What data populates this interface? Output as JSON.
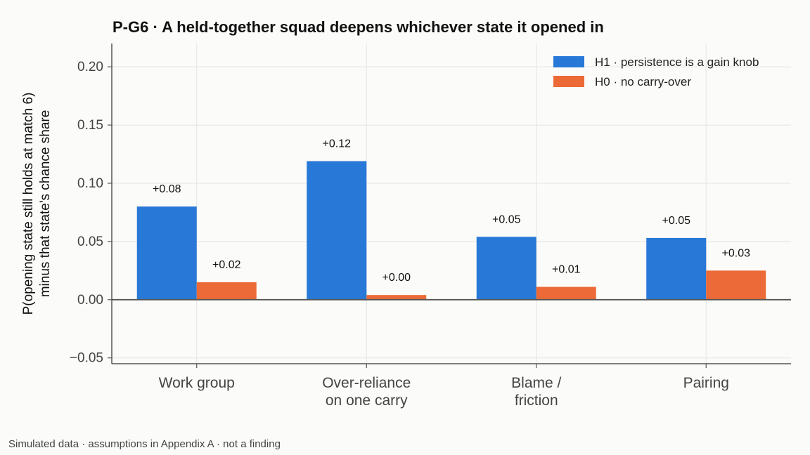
{
  "footnote": "Simulated data · assumptions in Appendix A · not a finding",
  "colors": {
    "h1": "#2878d8",
    "h0": "#ec6a37",
    "axis": "#555555",
    "zero_line": "#555555"
  },
  "chart_data": {
    "type": "bar",
    "title": "P-G6 · A held-together squad deepens whichever state it opened in",
    "xlabel": "",
    "ylabel": [
      "P(opening state still holds at match 6)",
      "minus that state's chance share"
    ],
    "ylim": [
      -0.055,
      0.22
    ],
    "yticks": [
      -0.05,
      0.0,
      0.05,
      0.1,
      0.15,
      0.2
    ],
    "ytick_labels": [
      "−0.05",
      "0.00",
      "0.05",
      "0.10",
      "0.15",
      "0.20"
    ],
    "categories": [
      [
        "Work group"
      ],
      [
        "Over-reliance",
        "on one carry"
      ],
      [
        "Blame /",
        "friction"
      ],
      [
        "Pairing"
      ]
    ],
    "series": [
      {
        "name": "H1 · persistence is a gain knob",
        "color": "#2878d8",
        "values": [
          0.08,
          0.119,
          0.054,
          0.053
        ],
        "labels": [
          "+0.08",
          "+0.12",
          "+0.05",
          "+0.05"
        ]
      },
      {
        "name": "H0 · no carry-over",
        "color": "#ec6a37",
        "values": [
          0.015,
          0.004,
          0.011,
          0.025
        ],
        "labels": [
          "+0.02",
          "+0.00",
          "+0.01",
          "+0.03"
        ]
      }
    ],
    "grid": true,
    "legend_position": "top-right"
  }
}
